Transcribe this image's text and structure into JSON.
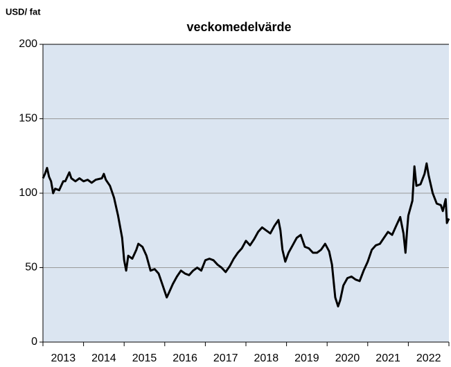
{
  "chart_data": {
    "type": "line",
    "title": "veckomedelvärde",
    "y_label": "USD/ fat",
    "x": [
      2013.0,
      2013.05,
      2013.1,
      2013.15,
      2013.2,
      2013.25,
      2013.3,
      2013.4,
      2013.5,
      2013.55,
      2013.65,
      2013.7,
      2013.8,
      2013.9,
      2014.0,
      2014.1,
      2014.2,
      2014.3,
      2014.45,
      2014.5,
      2014.55,
      2014.65,
      2014.75,
      2014.85,
      2014.95,
      2015.0,
      2015.05,
      2015.1,
      2015.2,
      2015.3,
      2015.35,
      2015.45,
      2015.55,
      2015.65,
      2015.75,
      2015.85,
      2015.95,
      2016.05,
      2016.1,
      2016.2,
      2016.3,
      2016.4,
      2016.5,
      2016.6,
      2016.7,
      2016.8,
      2016.9,
      2017.0,
      2017.1,
      2017.2,
      2017.3,
      2017.4,
      2017.5,
      2017.6,
      2017.7,
      2017.8,
      2017.9,
      2018.0,
      2018.1,
      2018.2,
      2018.3,
      2018.4,
      2018.5,
      2018.6,
      2018.7,
      2018.8,
      2018.85,
      2018.9,
      2018.97,
      2019.05,
      2019.15,
      2019.25,
      2019.35,
      2019.45,
      2019.55,
      2019.65,
      2019.75,
      2019.85,
      2019.95,
      2020.05,
      2020.12,
      2020.2,
      2020.27,
      2020.32,
      2020.4,
      2020.5,
      2020.6,
      2020.7,
      2020.8,
      2020.9,
      2021.0,
      2021.1,
      2021.2,
      2021.3,
      2021.4,
      2021.5,
      2021.6,
      2021.7,
      2021.8,
      2021.88,
      2021.93,
      2021.97,
      2022.0,
      2022.1,
      2022.15,
      2022.2,
      2022.3,
      2022.4,
      2022.45,
      2022.5,
      2022.6,
      2022.7,
      2022.8,
      2022.85,
      2022.92,
      2022.95,
      2023.0
    ],
    "series": [
      {
        "name": "veckomedelvärde",
        "color": "#000000",
        "values": [
          110,
          113,
          117,
          111,
          108,
          100,
          103,
          102,
          108,
          108,
          114,
          110,
          108,
          110,
          108,
          109,
          107,
          109,
          110,
          113,
          109,
          105,
          97,
          85,
          70,
          55,
          48,
          58,
          56,
          62,
          66,
          64,
          58,
          48,
          49,
          46,
          38,
          30,
          33,
          39,
          44,
          48,
          46,
          45,
          48,
          50,
          48,
          55,
          56,
          55,
          52,
          50,
          47,
          51,
          56,
          60,
          63,
          68,
          65,
          69,
          74,
          77,
          75,
          73,
          78,
          82,
          75,
          62,
          54,
          60,
          65,
          70,
          72,
          64,
          63,
          60,
          60,
          62,
          66,
          61,
          52,
          30,
          24,
          28,
          38,
          43,
          44,
          42,
          41,
          48,
          54,
          62,
          65,
          66,
          70,
          74,
          72,
          78,
          84,
          73,
          60,
          75,
          85,
          95,
          118,
          105,
          106,
          113,
          120,
          112,
          100,
          93,
          92,
          88,
          96,
          80,
          83
        ]
      }
    ],
    "xlim": [
      2013,
      2023
    ],
    "xticks": [
      {
        "value": 2013.5,
        "label": "2013"
      },
      {
        "value": 2014.5,
        "label": "2014"
      },
      {
        "value": 2015.5,
        "label": "2015"
      },
      {
        "value": 2016.5,
        "label": "2016"
      },
      {
        "value": 2017.5,
        "label": "2017"
      },
      {
        "value": 2018.5,
        "label": "2018"
      },
      {
        "value": 2019.5,
        "label": "2019"
      },
      {
        "value": 2020.5,
        "label": "2020"
      },
      {
        "value": 2021.5,
        "label": "2021"
      },
      {
        "value": 2022.5,
        "label": "2022"
      }
    ],
    "ylim": [
      0,
      200
    ],
    "yticks": [
      0,
      50,
      100,
      150,
      200
    ],
    "grid": true
  }
}
